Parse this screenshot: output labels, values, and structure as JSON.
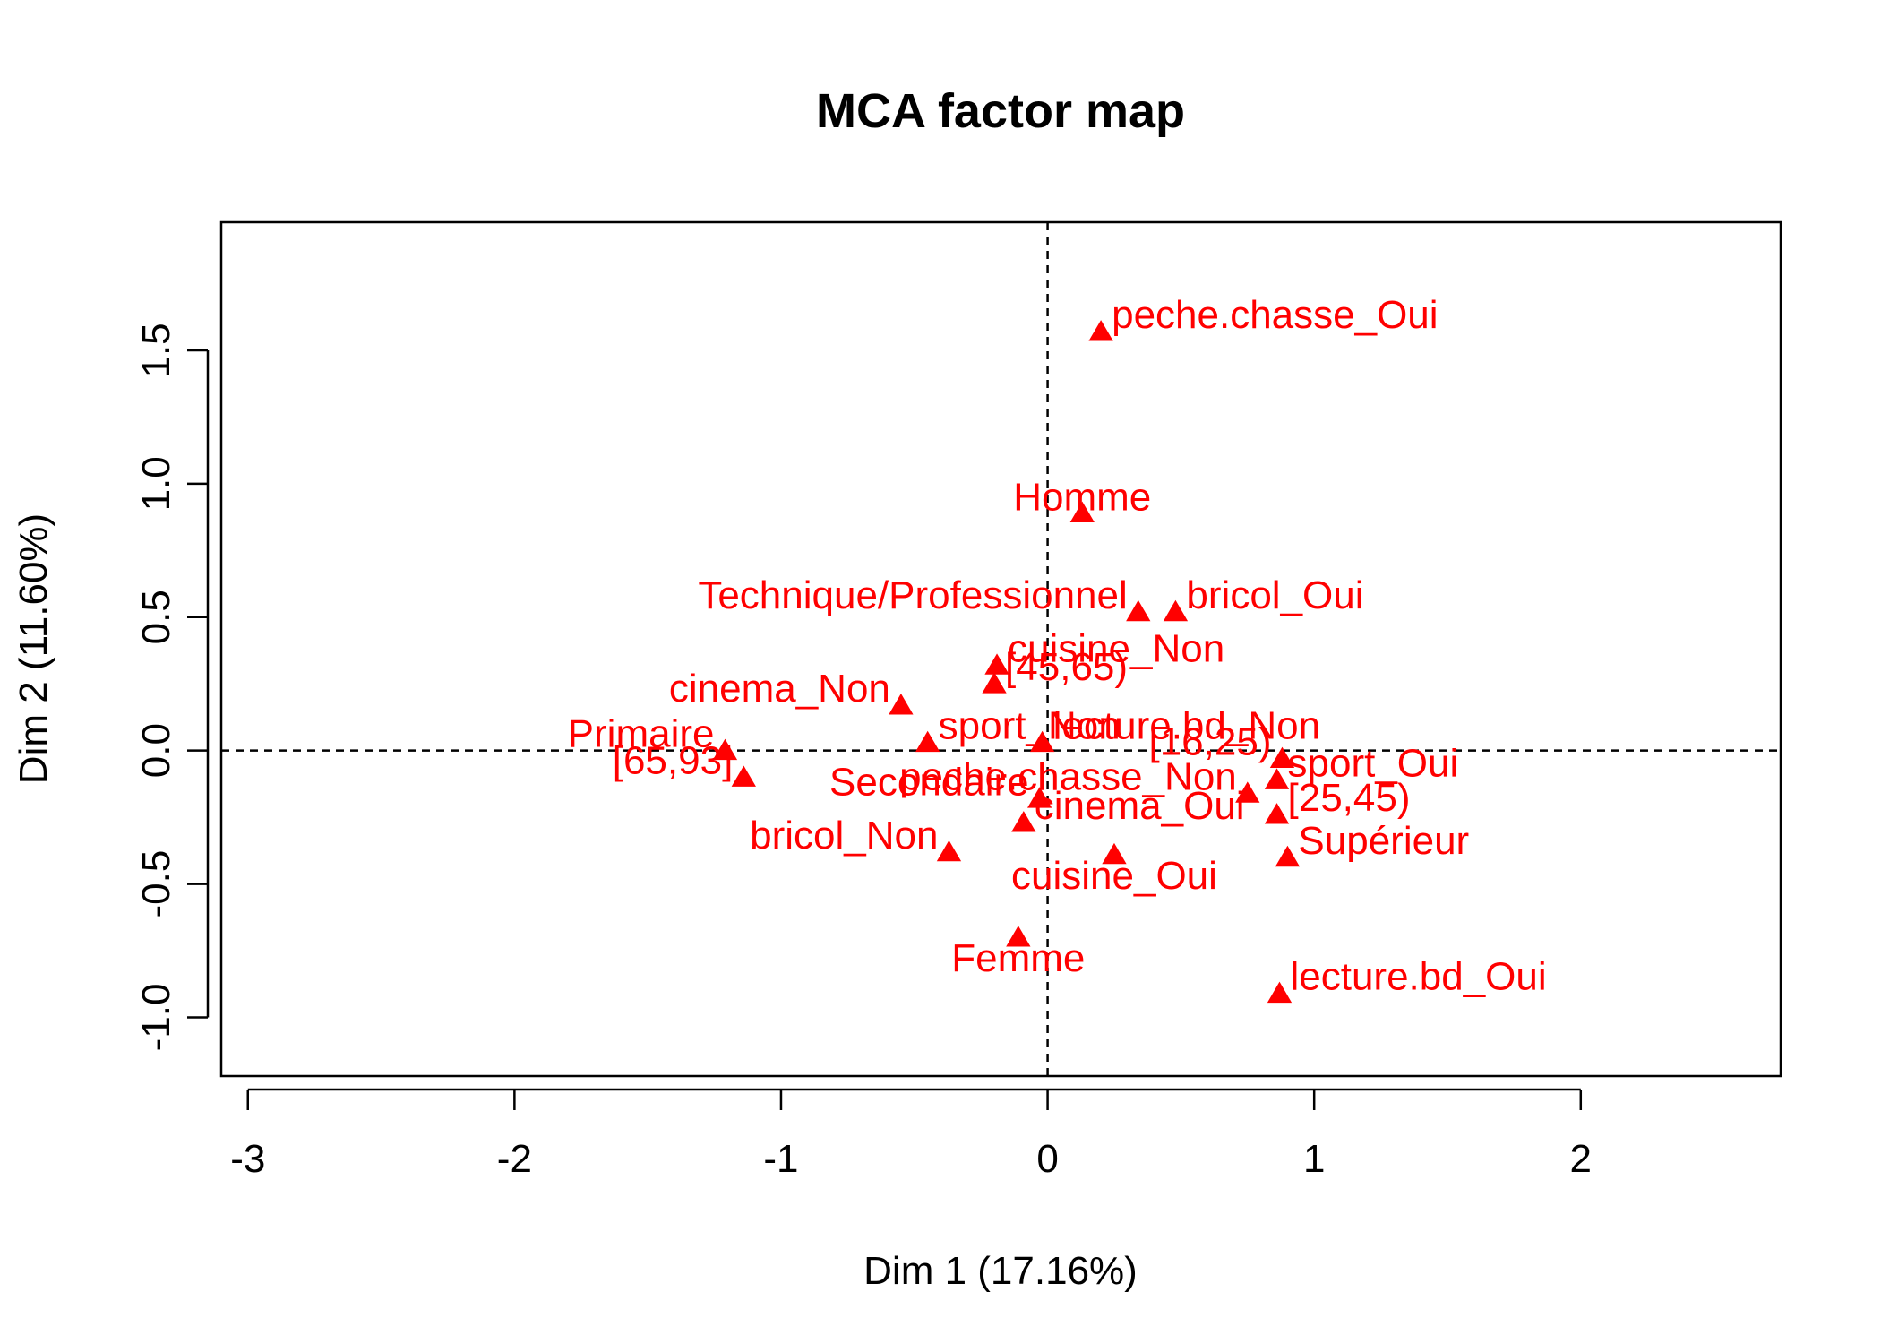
{
  "chart_data": {
    "type": "scatter",
    "title": "MCA factor map",
    "xlabel": "Dim 1 (17.16%)",
    "ylabel": "Dim 2 (11.60%)",
    "xlim": [
      -3.1,
      2.75
    ],
    "ylim": [
      -1.22,
      1.98
    ],
    "x_ticks": [
      -3,
      -2,
      -1,
      0,
      1,
      2
    ],
    "y_ticks": [
      -1.0,
      -0.5,
      0.0,
      0.5,
      1.0,
      1.5
    ],
    "x_tick_labels": [
      "-3",
      "-2",
      "-1",
      "0",
      "1",
      "2"
    ],
    "y_tick_labels": [
      "-1.0",
      "-0.5",
      "0.0",
      "0.5",
      "1.0",
      "1.5"
    ],
    "reference_lines": {
      "x": 0,
      "y": 0,
      "style": "dashed"
    },
    "marker": "filled-triangle",
    "color": "#ff0000",
    "grid": false,
    "points": [
      {
        "label": "peche.chasse_Oui",
        "x": 0.2,
        "y": 1.57,
        "label_pos": "right"
      },
      {
        "label": "Homme",
        "x": 0.13,
        "y": 0.89,
        "label_pos": "above"
      },
      {
        "label": "Technique/Professionnel",
        "x": 0.34,
        "y": 0.52,
        "label_pos": "left"
      },
      {
        "label": "bricol_Oui",
        "x": 0.48,
        "y": 0.52,
        "label_pos": "right"
      },
      {
        "label": "cuisine_Non",
        "x": -0.19,
        "y": 0.32,
        "label_pos": "right"
      },
      {
        "label": "[45,65)",
        "x": -0.2,
        "y": 0.25,
        "label_pos": "right"
      },
      {
        "label": "cinema_Non",
        "x": -0.55,
        "y": 0.17,
        "label_pos": "left"
      },
      {
        "label": "sport_Non",
        "x": -0.45,
        "y": 0.03,
        "label_pos": "right"
      },
      {
        "label": "lecture.bd_Non",
        "x": -0.02,
        "y": 0.03,
        "label_pos": "right"
      },
      {
        "label": "Primaire",
        "x": -1.21,
        "y": 0.0,
        "label_pos": "left"
      },
      {
        "label": "[65,93]",
        "x": -1.14,
        "y": -0.1,
        "label_pos": "left"
      },
      {
        "label": "[16,25)",
        "x": 0.88,
        "y": -0.03,
        "label_pos": "left"
      },
      {
        "label": "sport_Oui",
        "x": 0.86,
        "y": -0.11,
        "label_pos": "right"
      },
      {
        "label": "peche.chasse_Non",
        "x": 0.75,
        "y": -0.16,
        "label_pos": "left"
      },
      {
        "label": "[25,45)",
        "x": 0.86,
        "y": -0.24,
        "label_pos": "right"
      },
      {
        "label": "Secondaire",
        "x": -0.03,
        "y": -0.18,
        "label_pos": "left"
      },
      {
        "label": "cinema_Oui",
        "x": -0.09,
        "y": -0.27,
        "label_pos": "right"
      },
      {
        "label": "bricol_Non",
        "x": -0.37,
        "y": -0.38,
        "label_pos": "left"
      },
      {
        "label": "cuisine_Oui",
        "x": 0.25,
        "y": -0.39,
        "label_pos": "below"
      },
      {
        "label": "Supérieur",
        "x": 0.9,
        "y": -0.4,
        "label_pos": "right"
      },
      {
        "label": "Femme",
        "x": -0.11,
        "y": -0.7,
        "label_pos": "below"
      },
      {
        "label": "lecture.bd_Oui",
        "x": 0.87,
        "y": -0.91,
        "label_pos": "right"
      }
    ]
  }
}
